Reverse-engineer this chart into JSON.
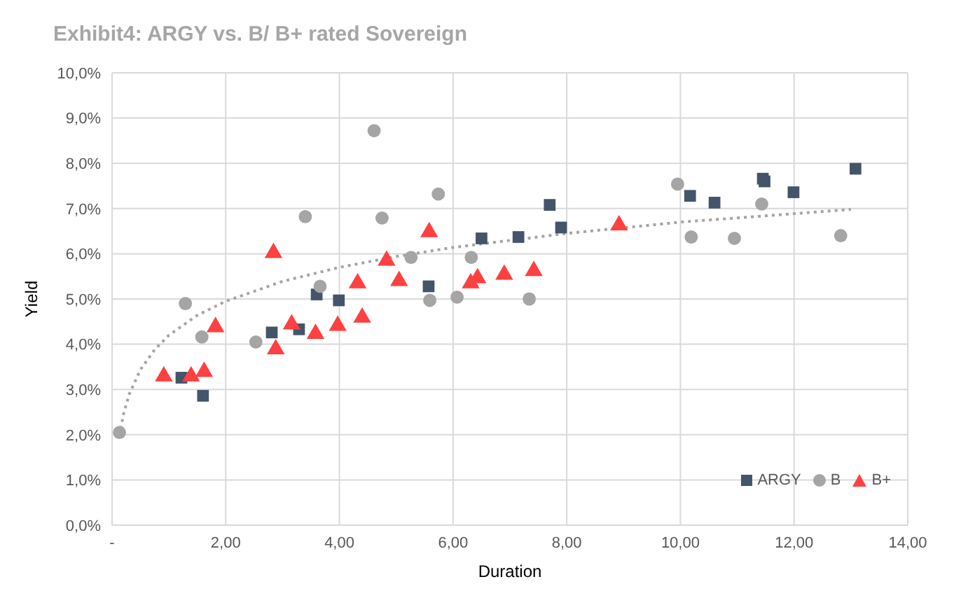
{
  "chart_data": {
    "type": "scatter",
    "title": "Exhibit4: ARGY vs. B/ B+ rated Sovereign",
    "xlabel": "Duration",
    "ylabel": "Yield",
    "xlim": [
      0,
      14
    ],
    "xticks": [
      {
        "value": 0,
        "label": "-"
      },
      {
        "value": 2,
        "label": "2,00"
      },
      {
        "value": 4,
        "label": "4,00"
      },
      {
        "value": 6,
        "label": "6,00"
      },
      {
        "value": 8,
        "label": "8,00"
      },
      {
        "value": 10,
        "label": "10,00"
      },
      {
        "value": 12,
        "label": "12,00"
      },
      {
        "value": 14,
        "label": "14,00"
      }
    ],
    "ylim": [
      0,
      10
    ],
    "yticks": [
      {
        "value": 0,
        "label": "0,0%"
      },
      {
        "value": 1,
        "label": "1,0%"
      },
      {
        "value": 2,
        "label": "2,0%"
      },
      {
        "value": 3,
        "label": "3,0%"
      },
      {
        "value": 4,
        "label": "4,0%"
      },
      {
        "value": 5,
        "label": "5,0%"
      },
      {
        "value": 6,
        "label": "6,0%"
      },
      {
        "value": 7,
        "label": "7,0%"
      },
      {
        "value": 8,
        "label": "8,0%"
      },
      {
        "value": 9,
        "label": "9,0%"
      },
      {
        "value": 10,
        "label": "10,0%"
      }
    ],
    "grid": true,
    "legend": "bottom right",
    "series": [
      {
        "name": "ARGY",
        "color": "#44546a",
        "marker": "square",
        "x": [
          1.22,
          1.6,
          2.81,
          3.29,
          3.6,
          3.99,
          5.57,
          6.5,
          7.15,
          7.7,
          7.9,
          10.17,
          10.6,
          11.45,
          11.48,
          11.99,
          13.08
        ],
        "values": [
          3.26,
          2.86,
          4.26,
          4.33,
          5.1,
          4.97,
          5.28,
          6.34,
          6.37,
          7.08,
          6.58,
          7.28,
          7.13,
          7.66,
          7.6,
          7.36,
          7.88
        ]
      },
      {
        "name": "B",
        "color": "#a5a5a5",
        "marker": "circle",
        "x": [
          0.13,
          1.29,
          1.58,
          2.53,
          3.4,
          3.66,
          4.61,
          4.75,
          5.26,
          5.59,
          5.74,
          6.07,
          6.32,
          7.34,
          9.95,
          10.19,
          10.95,
          11.43,
          12.82
        ],
        "values": [
          2.05,
          4.9,
          4.16,
          4.05,
          6.82,
          5.28,
          8.72,
          6.79,
          5.92,
          4.97,
          7.32,
          5.04,
          5.92,
          5.0,
          7.54,
          6.37,
          6.34,
          7.1,
          6.4
        ]
      },
      {
        "name": "B+",
        "color": "#ff4040",
        "marker": "triangle",
        "x": [
          0.91,
          1.39,
          1.62,
          1.82,
          2.84,
          2.88,
          3.16,
          3.58,
          3.97,
          4.32,
          4.4,
          4.83,
          5.05,
          5.58,
          6.31,
          6.43,
          6.9,
          7.42,
          8.92
        ],
        "values": [
          3.29,
          3.29,
          3.39,
          4.38,
          6.02,
          3.89,
          4.44,
          4.23,
          4.41,
          5.35,
          4.59,
          5.85,
          5.4,
          6.48,
          5.35,
          5.46,
          5.54,
          5.62,
          6.63
        ]
      },
      {
        "type": "line",
        "color": "#a5a5a5",
        "line_style": "dotted",
        "marker": "none",
        "x": [
          0.13,
          0.2,
          0.3,
          0.5,
          0.75,
          1,
          1.5,
          2,
          3,
          4,
          5,
          6,
          8,
          10,
          13
        ],
        "values": [
          1.98,
          2.45,
          2.89,
          3.44,
          3.88,
          4.2,
          4.64,
          4.95,
          5.39,
          5.7,
          5.94,
          6.14,
          6.45,
          6.7,
          6.98
        ]
      }
    ]
  }
}
